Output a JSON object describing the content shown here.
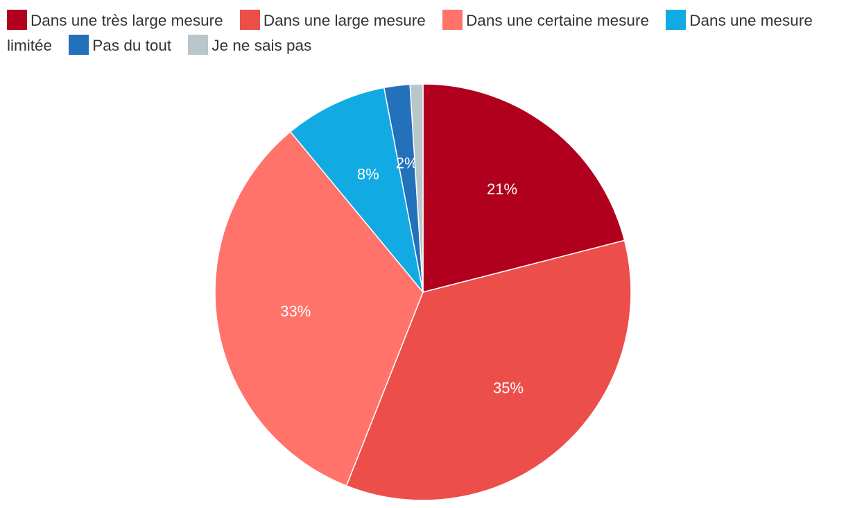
{
  "chart_data": {
    "type": "pie",
    "title": "",
    "legend_position": "top",
    "slices": [
      {
        "name": "Dans une très large mesure",
        "value": 21,
        "label": "21%",
        "color": "#b0001e"
      },
      {
        "name": "Dans une large mesure",
        "value": 35,
        "label": "35%",
        "color": "#ec4e4a"
      },
      {
        "name": "Dans une certaine mesure",
        "value": 33,
        "label": "33%",
        "color": "#ff736b"
      },
      {
        "name": "Dans une mesure limitée",
        "value": 8,
        "label": "8%",
        "color": "#12aae3"
      },
      {
        "name": "Pas du tout",
        "value": 2,
        "label": "2%",
        "color": "#2370bb"
      },
      {
        "name": "Je ne sais pas",
        "value": 1,
        "label": "",
        "color": "#b9c6cc"
      }
    ]
  }
}
